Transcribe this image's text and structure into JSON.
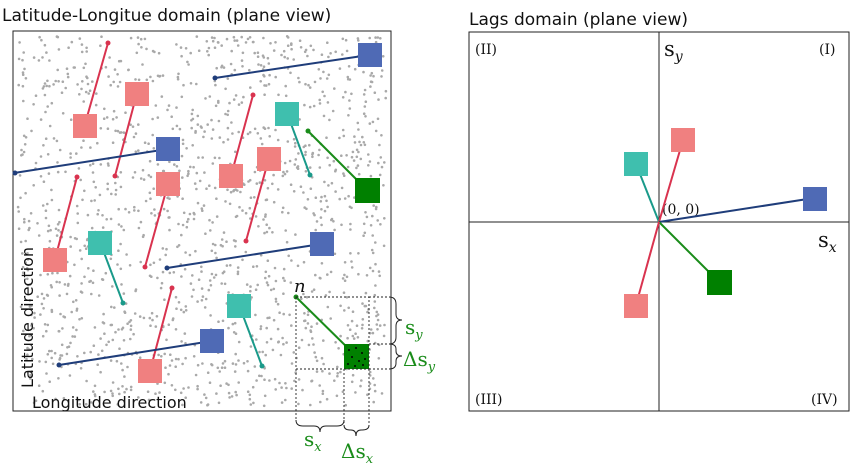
{
  "left_panel": {
    "title": "Latitude-Longitue domain (plane view)",
    "x_label": "Longitude direction",
    "y_label": "Latitude direction",
    "point_label": "n",
    "sx_label": "s",
    "sx_sub": "x",
    "dsx_label": "Δs",
    "dsx_sub": "x",
    "sy_label": "s",
    "sy_sub": "y",
    "dsy_label": "Δs",
    "dsy_sub": "y"
  },
  "right_panel": {
    "title": "Lags domain (plane view)",
    "q1": "(I)",
    "q2": "(II)",
    "q3": "(III)",
    "q4": "(IV)",
    "origin": "(0, 0)",
    "sx_label": "s",
    "sx_sub": "x",
    "sy_label": "s",
    "sy_sub": "y"
  },
  "colors": {
    "red": "#d9334f",
    "red_fill": "#f08080",
    "blue": "#1f3d7a",
    "blue_fill": "#4f6ab5",
    "teal": "#1a9a8a",
    "teal_fill": "#3fbfae",
    "green": "#1a8c1a",
    "green_fill": "#008000",
    "scatter": "#a9a9a9"
  }
}
